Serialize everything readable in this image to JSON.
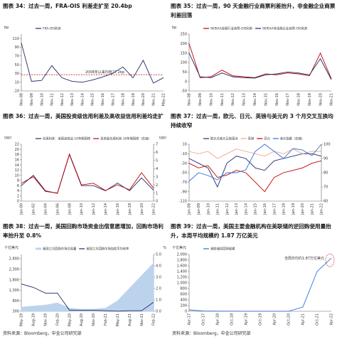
{
  "chart_data": [
    {
      "type": "line",
      "title": "图表 34：过去一周，FRA-OIS 利差走扩至 20.4bp",
      "y_label": "bp",
      "categories": [
        "Nov-08",
        "Nov-09",
        "Nov-10",
        "Nov-11",
        "Nov-12",
        "Nov-13",
        "Nov-14",
        "Nov-15",
        "Nov-16",
        "Nov-17",
        "Nov-18",
        "Nov-19",
        "Nov-20",
        "Nov-21",
        "May-22"
      ],
      "series": [
        {
          "name": "FRA-OIS利差",
          "color": "#1f2a6b",
          "values": [
            100,
            12,
            14,
            48,
            20,
            12,
            10,
            15,
            22,
            30,
            45,
            20,
            60,
            8,
            20.4
          ]
        }
      ],
      "ylim": [
        -10,
        120
      ],
      "yticks": [
        -10,
        10,
        30,
        50,
        70,
        90,
        110
      ],
      "hline": {
        "value": 27.2,
        "label": "2008年以来均值27.2bp",
        "color": "#c00000"
      }
    },
    {
      "type": "line",
      "title": "图表 35：过去一周，90 天金融行业商票利差抬升，非金融企业商票利差回落",
      "y_label": "bp",
      "categories": [
        "Nov-08",
        "Nov-09",
        "Nov-10",
        "Nov-11",
        "Nov-12",
        "Nov-13",
        "Nov-14",
        "Nov-15",
        "Nov-16",
        "Nov-17",
        "Nov-18",
        "Nov-19",
        "Nov-20",
        "Nov-21"
      ],
      "series": [
        {
          "name": "90天AA金融行业商票-OIS利差",
          "color": "#c00000",
          "values": [
            200,
            20,
            25,
            60,
            30,
            25,
            20,
            40,
            35,
            45,
            40,
            30,
            150,
            15
          ]
        },
        {
          "name": "90天AA非金融企业商票-OIS利差",
          "color": "#1f2a6b",
          "values": [
            150,
            25,
            20,
            45,
            25,
            20,
            18,
            35,
            40,
            50,
            45,
            35,
            120,
            10
          ]
        }
      ],
      "ylim": [
        -50,
        250
      ],
      "yticks": [
        -50,
        0,
        50,
        100,
        150,
        200,
        250
      ]
    },
    {
      "type": "line",
      "title": "图表 36：过去一周，美国投资级信用利差及高收益信用利差均走扩",
      "y_label": "(pp)",
      "y2_label": "(pp)",
      "categories": [
        "Jan-00",
        "Jan-02",
        "Jan-04",
        "Jan-06",
        "Jan-08",
        "Jan-10",
        "Jan-12",
        "Jan-14",
        "Jan-16",
        "Jan-18",
        "Jan-20",
        "Jan-22"
      ],
      "series": [
        {
          "name": "信用利差：美国高收益-10年期国债",
          "color": "#1f2a6b",
          "values": [
            6,
            10,
            4,
            3,
            18,
            6,
            6,
            4,
            7,
            4,
            9,
            4.2
          ]
        },
        {
          "name": "投资级信用利差-10年期国债（右轴）",
          "color": "#c00000",
          "axis": "y2",
          "values": [
            2.2,
            3,
            1.2,
            1,
            5.8,
            2,
            2.2,
            1.3,
            2,
            1.4,
            3.5,
            1.6
          ]
        }
      ],
      "ylim": [
        0,
        22
      ],
      "yticks": [
        0,
        2,
        4,
        6,
        8,
        10,
        12,
        14,
        16,
        18,
        20,
        22
      ],
      "y2lim": [
        0,
        7
      ],
      "y2ticks": [
        0,
        1,
        2,
        3,
        4,
        5,
        6,
        7
      ]
    },
    {
      "type": "line",
      "title": "图表 37：过去一周，欧元、日元、英镑与美元的 3 个月交叉互换均持续收窄",
      "categories": [
        "Jan-08",
        "Jan-09",
        "Jan-10",
        "Jan-11",
        "Jan-12",
        "Jan-13",
        "Jan-14",
        "Jan-15",
        "Jan-16",
        "Jan-17",
        "Jan-18",
        "Jan-19",
        "Jan-20",
        "Jan-21",
        "Jan-22"
      ],
      "series": [
        {
          "name": "欧元兑美元互换基点",
          "color": "#1f2a6b",
          "values": [
            -20,
            -30,
            -40,
            -80,
            -30,
            -15,
            -20,
            -40,
            -45,
            -25,
            -20,
            -15,
            -10,
            -10,
            -15
          ]
        },
        {
          "name": "英镑",
          "color": "#f4a582",
          "values": [
            -5,
            -10,
            -5,
            -20,
            -10,
            0,
            -5,
            -10,
            -15,
            -5,
            -10,
            0,
            -10,
            -5,
            -5
          ]
        },
        {
          "name": "日元",
          "color": "#c00000",
          "values": [
            -30,
            -40,
            -35,
            -60,
            -55,
            -45,
            -50,
            -70,
            -90,
            -60,
            -50,
            -45,
            -40,
            -30,
            -25
          ]
        },
        {
          "name": "美元指数（右轴）",
          "color": "#2f6fd6",
          "axis": "y2",
          "values": [
            74,
            80,
            78,
            75,
            80,
            80,
            82,
            95,
            100,
            95,
            90,
            97,
            96,
            92,
            100
          ]
        }
      ],
      "ylim": [
        -110,
        10
      ],
      "yticks": [
        -110,
        -90,
        -70,
        -50,
        -30,
        -10,
        10
      ],
      "y2lim": [
        60,
        100
      ],
      "y2ticks": [
        60,
        70,
        80,
        90,
        100
      ]
    },
    {
      "type": "line",
      "title": "图表 38：过去一周，美国回购市场资金出借意愿增加，回购市场利率抬升至 0.8%",
      "y_label": "十亿美元",
      "y2_label": "%",
      "categories": [
        "May-19",
        "Aug-19",
        "Nov-19",
        "Feb-20",
        "May-20",
        "Aug-20",
        "Nov-20",
        "Feb-21",
        "May-21",
        "Aug-21",
        "Nov-21",
        "Feb-22"
      ],
      "series": [
        {
          "name": "美国三方回购市场交易量",
          "color": "#bcd3ee",
          "style": "area",
          "values": [
            500,
            550,
            600,
            700,
            450,
            400,
            400,
            450,
            800,
            1400,
            2000,
            2600
          ]
        },
        {
          "name": "美国三方回购市场加权平均利率",
          "color": "#1f2a6b",
          "axis": "y2",
          "values": [
            2.4,
            2.1,
            1.6,
            1.6,
            0.1,
            0.1,
            0.1,
            0.05,
            0.01,
            0.05,
            0.05,
            0.8
          ]
        }
      ],
      "ylim": [
        300,
        3000
      ],
      "yticks": [
        300,
        800,
        {
          "value": 1300,
          "label": "1,300"
        },
        {
          "value": 1800,
          "label": "1,800"
        },
        {
          "value": 2300,
          "label": "2,300"
        },
        {
          "value": 2800,
          "label": "2,800"
        }
      ],
      "y2lim": [
        0,
        5
      ],
      "y2ticks": [
        {
          "value": 0,
          "label": "0.0"
        },
        {
          "value": 1,
          "label": "1.0"
        },
        {
          "value": 2,
          "label": "2.0"
        },
        {
          "value": 3,
          "label": "3.0"
        },
        {
          "value": 4,
          "label": "4.0"
        },
        {
          "value": 5,
          "label": "5.0"
        }
      ]
    },
    {
      "type": "line",
      "title": "图表 39：过去一周，美国主要金融机构在美联储的逆回购使用量抬升，本周平均规模约 1.87 万亿美元",
      "y_label": "十亿美元",
      "categories": [
        "Apr-17",
        "Oct-17",
        "Apr-18",
        "Oct-18",
        "Apr-19",
        "Oct-19",
        "Apr-20",
        "Oct-20",
        "Apr-21",
        "Oct-21",
        "Apr-22"
      ],
      "series": [
        {
          "name": "美联储逆回购规模",
          "color": "#2f6fd6",
          "values": [
            50,
            10,
            5,
            5,
            2,
            1,
            1,
            2,
            150,
            1400,
            1870
          ]
        }
      ],
      "ylim": [
        0,
        2000
      ],
      "yticks": [
        0,
        200,
        400,
        600,
        800,
        {
          "value": 1000,
          "label": "1,000"
        },
        {
          "value": 1200,
          "label": "1,200"
        },
        {
          "value": 1400,
          "label": "1,400"
        },
        {
          "value": 1600,
          "label": "1,600"
        },
        {
          "value": 1800,
          "label": "1,800"
        },
        {
          "value": 2000,
          "label": "2,000"
        }
      ],
      "annotation": "当周日均约1.87万亿美元"
    }
  ],
  "footers": [
    "资料来源：Bloomberg，中金公司研究部",
    "资料来源：Bloomberg，中金公司研究部"
  ]
}
